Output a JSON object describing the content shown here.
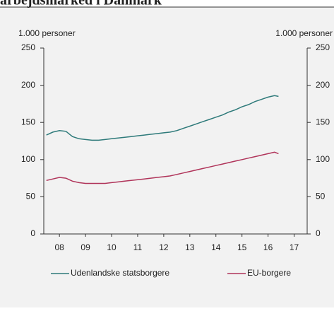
{
  "chart_data": {
    "type": "line",
    "title": "arbejdsmarked i Danmark",
    "ylabel": "1.000 personer",
    "y2label": "1.000 personer",
    "xlim": [
      2007.9,
      2018
    ],
    "xticks": [
      {
        "value": 2008.5,
        "label": "08"
      },
      {
        "value": 2009.5,
        "label": "09"
      },
      {
        "value": 2010.5,
        "label": "10"
      },
      {
        "value": 2011.5,
        "label": "11"
      },
      {
        "value": 2012.5,
        "label": "12"
      },
      {
        "value": 2013.5,
        "label": "13"
      },
      {
        "value": 2014.5,
        "label": "14"
      },
      {
        "value": 2015.5,
        "label": "15"
      },
      {
        "value": 2016.5,
        "label": "16"
      },
      {
        "value": 2017.5,
        "label": "17"
      }
    ],
    "ylim": [
      0,
      250
    ],
    "yticks": [
      0,
      50,
      100,
      150,
      200,
      250
    ],
    "y2lim": [
      0,
      250
    ],
    "y2ticks": [
      0,
      50,
      100,
      150,
      200,
      250
    ],
    "x": [
      2008,
      2008.25,
      2008.5,
      2008.75,
      2009,
      2009.25,
      2009.5,
      2009.75,
      2010,
      2010.25,
      2010.5,
      2010.75,
      2011,
      2011.25,
      2011.5,
      2011.75,
      2012,
      2012.25,
      2012.5,
      2012.75,
      2013,
      2013.25,
      2013.5,
      2013.75,
      2014,
      2014.25,
      2014.5,
      2014.75,
      2015,
      2015.25,
      2015.5,
      2015.75,
      2016,
      2016.25,
      2016.5,
      2016.75,
      2016.9
    ],
    "series": [
      {
        "name": "Udenlandske statsborgere",
        "color": "#2e7a7a",
        "values": [
          133,
          137,
          139,
          138,
          131,
          128,
          127,
          126,
          126,
          127,
          128,
          129,
          130,
          131,
          132,
          133,
          134,
          135,
          136,
          137,
          139,
          142,
          145,
          148,
          151,
          154,
          157,
          160,
          164,
          167,
          171,
          174,
          178,
          181,
          184,
          186,
          185
        ]
      },
      {
        "name": "EU-borgere",
        "color": "#b0345a",
        "values": [
          72,
          74,
          76,
          75,
          71,
          69,
          68,
          68,
          68,
          68,
          69,
          70,
          71,
          72,
          73,
          74,
          75,
          76,
          77,
          78,
          80,
          82,
          84,
          86,
          88,
          90,
          92,
          94,
          96,
          98,
          100,
          102,
          104,
          106,
          108,
          110,
          108
        ]
      }
    ]
  }
}
